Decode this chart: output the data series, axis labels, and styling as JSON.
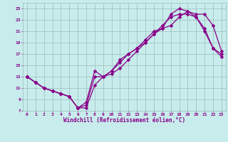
{
  "xlabel": "Windchill (Refroidissement éolien,°C)",
  "bg_color": "#c8ecec",
  "line_color": "#880088",
  "grid_color": "#99bbbb",
  "xlim": [
    -0.5,
    23.5
  ],
  "ylim": [
    7,
    26
  ],
  "xticks": [
    0,
    1,
    2,
    3,
    4,
    5,
    6,
    7,
    8,
    9,
    10,
    11,
    12,
    13,
    14,
    15,
    16,
    17,
    18,
    19,
    20,
    21,
    22,
    23
  ],
  "yticks": [
    7,
    9,
    11,
    13,
    15,
    17,
    19,
    21,
    23,
    25
  ],
  "series1_x": [
    0,
    1,
    2,
    3,
    4,
    5,
    6,
    7,
    8,
    9,
    10,
    11,
    12,
    13,
    14,
    15,
    16,
    17,
    18,
    19,
    20,
    21,
    22,
    23
  ],
  "series1_y": [
    13,
    12,
    11,
    10.5,
    10,
    9.5,
    7.5,
    7.5,
    11.5,
    13,
    13.5,
    14.5,
    16,
    17.5,
    19,
    20.5,
    22,
    23.5,
    24,
    24,
    23.5,
    21,
    18,
    16.5
  ],
  "series2_x": [
    0,
    1,
    2,
    3,
    4,
    5,
    6,
    7,
    8,
    9,
    10,
    11,
    12,
    13,
    14,
    15,
    16,
    17,
    18,
    19,
    20,
    21,
    22,
    23
  ],
  "series2_y": [
    13,
    12,
    11,
    10.5,
    10,
    9.5,
    7.5,
    8.5,
    14,
    13,
    14,
    15.5,
    17,
    18,
    19.5,
    21,
    21.5,
    22,
    23.5,
    24.5,
    24,
    24,
    22,
    17.5
  ],
  "series3_x": [
    0,
    1,
    2,
    3,
    4,
    5,
    6,
    7,
    8,
    9,
    10,
    11,
    12,
    13,
    14,
    15,
    16,
    17,
    18,
    19,
    20,
    21,
    22,
    23
  ],
  "series3_y": [
    13,
    12,
    11,
    10.5,
    10,
    9.5,
    7.5,
    8,
    13,
    13,
    14,
    16,
    17,
    18,
    19,
    20.5,
    21.5,
    24,
    25,
    24.5,
    23.5,
    21.5,
    18,
    17
  ],
  "markersize": 2.5,
  "linewidth": 0.9
}
